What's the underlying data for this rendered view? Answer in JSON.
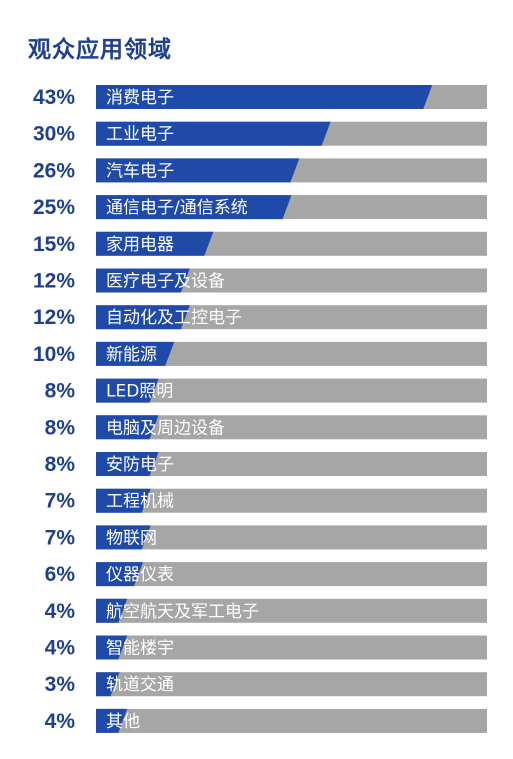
{
  "chart_data": {
    "type": "bar",
    "title": "观众应用领域",
    "categories": [
      "消费电子",
      "工业电子",
      "汽车电子",
      "通信电子/通信系统",
      "家用电器",
      "医疗电子及设备",
      "自动化及工控电子",
      "新能源",
      "LED照明",
      "电脑及周边设备",
      "安防电子",
      "工程机械",
      "物联网",
      "仪器仪表",
      "航空航天及军工电子",
      "智能楼宇",
      "轨道交通",
      "其他"
    ],
    "values": [
      43,
      30,
      26,
      25,
      15,
      12,
      12,
      10,
      8,
      8,
      8,
      7,
      7,
      6,
      4,
      4,
      3,
      4
    ],
    "value_labels": [
      "43%",
      "30%",
      "26%",
      "25%",
      "15%",
      "12%",
      "12%",
      "10%",
      "8%",
      "8%",
      "8%",
      "7%",
      "7%",
      "6%",
      "4%",
      "4%",
      "3%",
      "4%"
    ],
    "xlim": [
      0,
      50
    ],
    "orientation": "horizontal",
    "colors": {
      "bar": "#1f4aa8",
      "track": "#a6a6a6",
      "label": "#1f3f8f"
    }
  }
}
